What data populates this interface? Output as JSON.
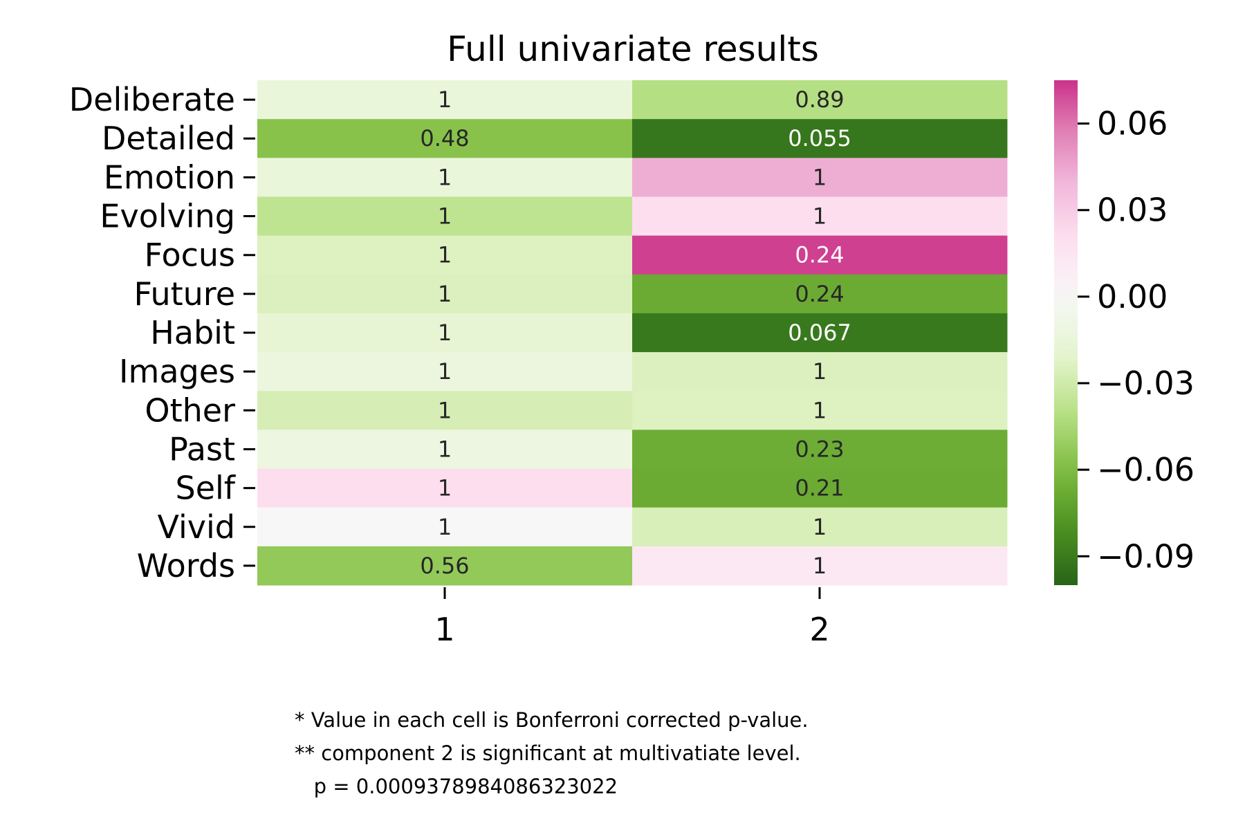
{
  "chart_data": {
    "type": "heatmap",
    "title": "Full univariate results",
    "xlabel": "",
    "ylabel": "",
    "rows": [
      "Deliberate",
      "Detailed",
      "Emotion",
      "Evolving",
      "Focus",
      "Future",
      "Habit",
      "Images",
      "Other",
      "Past",
      "Self",
      "Vivid",
      "Words"
    ],
    "columns": [
      "1",
      "2"
    ],
    "values": [
      [
        -0.015,
        -0.041
      ],
      [
        -0.057,
        -0.092
      ],
      [
        -0.015,
        0.043
      ],
      [
        -0.037,
        0.021
      ],
      [
        -0.024,
        0.072
      ],
      [
        -0.025,
        -0.068
      ],
      [
        -0.018,
        -0.091
      ],
      [
        -0.013,
        -0.025
      ],
      [
        -0.027,
        -0.024
      ],
      [
        -0.012,
        -0.067
      ],
      [
        0.021,
        -0.068
      ],
      [
        0.0,
        -0.026
      ],
      [
        -0.053,
        0.013
      ]
    ],
    "annotations": [
      [
        "1",
        "0.89"
      ],
      [
        "0.48",
        "0.055"
      ],
      [
        "1",
        "1"
      ],
      [
        "1",
        "1"
      ],
      [
        "1",
        "0.24"
      ],
      [
        "1",
        "0.24"
      ],
      [
        "1",
        "0.067"
      ],
      [
        "1",
        "1"
      ],
      [
        "1",
        "1"
      ],
      [
        "1",
        "0.23"
      ],
      [
        "1",
        "0.21"
      ],
      [
        "1",
        "1"
      ],
      [
        "0.56",
        "1"
      ]
    ],
    "colorbar": {
      "colormap": "PiYG",
      "vmin": -0.1,
      "vmax": 0.075,
      "center": 0,
      "ticks": [
        0.06,
        0.03,
        0.0,
        -0.03,
        -0.06,
        -0.09
      ],
      "tick_labels": [
        "0.06",
        "0.03",
        "0.00",
        "−0.03",
        "−0.06",
        "−0.09"
      ]
    }
  },
  "footnote": {
    "line1": "* Value in each cell is Bonferroni corrected p-value.",
    "line2": "** component 2 is significant at multivatiate level.",
    "line3": "   p = 0.0009378984086323022"
  }
}
